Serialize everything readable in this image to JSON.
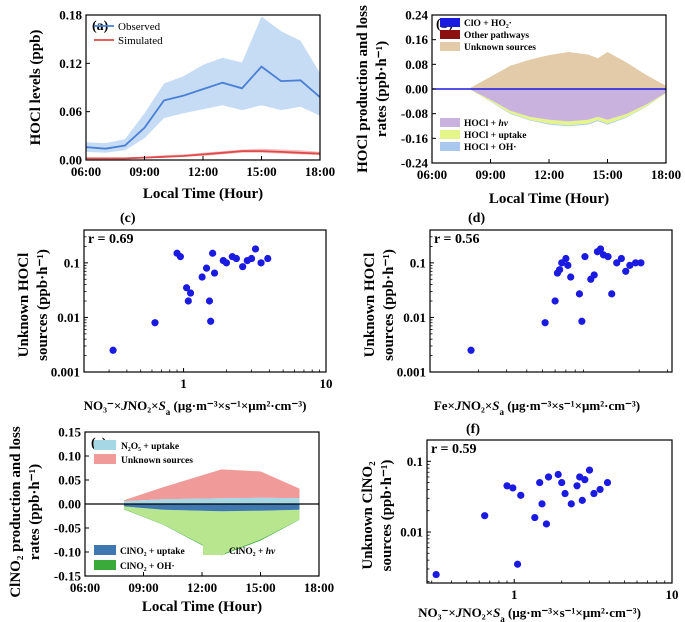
{
  "chart_data": [
    {
      "panel": "(a)",
      "type": "line",
      "ylabel": "HOCl levels (ppb)",
      "xlabel": "Local Time (Hour)",
      "xlim": [
        6,
        18
      ],
      "ylim": [
        0,
        0.18
      ],
      "yticks": [
        "0.00",
        "0.06",
        "0.12",
        "0.18"
      ],
      "xticks": [
        "06:00",
        "09:00",
        "12:00",
        "15:00",
        "18:00"
      ],
      "legend": [
        "Observed",
        "Simulated"
      ],
      "x": [
        6,
        7,
        8,
        9,
        10,
        11,
        12,
        13,
        14,
        15,
        16,
        17,
        18
      ],
      "series": [
        {
          "name": "Observed",
          "color": "#4a7fd6",
          "values": [
            0.016,
            0.014,
            0.018,
            0.04,
            0.074,
            0.08,
            0.088,
            0.096,
            0.089,
            0.116,
            0.098,
            0.099,
            0.078
          ],
          "lower": [
            0.01,
            0.009,
            0.012,
            0.027,
            0.052,
            0.058,
            0.063,
            0.068,
            0.062,
            0.068,
            0.062,
            0.066,
            0.055
          ],
          "upper": [
            0.022,
            0.021,
            0.026,
            0.058,
            0.095,
            0.104,
            0.118,
            0.127,
            0.121,
            0.178,
            0.16,
            0.148,
            0.108
          ]
        },
        {
          "name": "Simulated",
          "color": "#e04a4a",
          "values": [
            0.002,
            0.002,
            0.002,
            0.003,
            0.004,
            0.005,
            0.007,
            0.009,
            0.011,
            0.011,
            0.01,
            0.009,
            0.008
          ],
          "lower": [
            0.001,
            0.001,
            0.001,
            0.002,
            0.003,
            0.004,
            0.005,
            0.007,
            0.009,
            0.009,
            0.008,
            0.007,
            0.006
          ],
          "upper": [
            0.003,
            0.003,
            0.003,
            0.004,
            0.006,
            0.007,
            0.009,
            0.011,
            0.013,
            0.014,
            0.013,
            0.012,
            0.01
          ]
        }
      ]
    },
    {
      "panel": "(b)",
      "type": "area",
      "ylabel_line1": "HOCl production and loss",
      "ylabel_line2": "rates (ppb·h⁻¹)",
      "xlabel": "Local Time (Hour)",
      "xlim": [
        6,
        18
      ],
      "ylim": [
        -0.24,
        0.24
      ],
      "yticks": [
        "0.24",
        "0.16",
        "0.08",
        "0.00",
        "-0.08",
        "-0.16",
        "-0.24"
      ],
      "xticks": [
        "06:00",
        "09:00",
        "12:00",
        "15:00",
        "18:00"
      ],
      "legend_top": [
        {
          "label": "ClO + HO₂·",
          "color": "#1a1ae0"
        },
        {
          "label": "Other pathways",
          "color": "#8b1010"
        },
        {
          "label": "Unknown sources",
          "color": "#e3caa8"
        }
      ],
      "legend_bottom": [
        {
          "label": "HOCl + hv",
          "color": "#c9b2dd"
        },
        {
          "label": "HOCl + uptake",
          "color": "#e4f58a"
        },
        {
          "label": "HOCl + OH·",
          "color": "#a8c8ee"
        }
      ],
      "x": [
        8,
        9,
        10,
        11,
        12,
        13,
        14,
        14.5,
        15,
        16,
        17,
        18
      ],
      "series": [
        {
          "name": "Unknown sources",
          "values": [
            0.005,
            0.04,
            0.075,
            0.095,
            0.11,
            0.12,
            0.112,
            0.1,
            0.12,
            0.085,
            0.045,
            0.01
          ]
        },
        {
          "name": "HOCl + hv",
          "values": [
            -0.003,
            -0.035,
            -0.07,
            -0.09,
            -0.1,
            -0.105,
            -0.1,
            -0.09,
            -0.1,
            -0.08,
            -0.05,
            -0.012
          ]
        },
        {
          "name": "HOCl + uptake",
          "values": [
            -0.001,
            -0.005,
            -0.008,
            -0.01,
            -0.012,
            -0.013,
            -0.012,
            -0.011,
            -0.013,
            -0.01,
            -0.006,
            -0.002
          ]
        },
        {
          "name": "HOCl + OH·",
          "values": [
            0,
            -0.001,
            -0.002,
            -0.002,
            -0.003,
            -0.003,
            -0.003,
            -0.003,
            -0.003,
            -0.002,
            -0.001,
            0
          ]
        }
      ]
    },
    {
      "panel": "(c)",
      "type": "scatter",
      "log_x": true,
      "log_y": true,
      "annotation": "r = 0.69",
      "ylabel_line1": "Unknown HOCl",
      "ylabel_line2": "sources (ppb·h⁻¹)",
      "xlabel": "NO₃⁻×JNO₂×Sa (μg·m⁻³×s⁻¹×μm²·cm⁻³)",
      "xlim": [
        0.2,
        10
      ],
      "ylim": [
        0.001,
        0.4
      ],
      "xticks": [
        "1",
        "10"
      ],
      "yticks": [
        "0.1",
        "0.01",
        "0.001"
      ],
      "color": "#1a1ae0",
      "x": [
        0.32,
        0.63,
        0.9,
        0.95,
        1.05,
        1.08,
        1.12,
        1.35,
        1.45,
        1.52,
        1.55,
        1.6,
        1.65,
        1.9,
        2.0,
        2.2,
        2.35,
        2.6,
        2.8,
        3.0,
        3.2,
        3.5,
        3.9
      ],
      "y": [
        0.0025,
        0.008,
        0.15,
        0.13,
        0.035,
        0.02,
        0.028,
        0.055,
        0.08,
        0.02,
        0.0085,
        0.15,
        0.065,
        0.11,
        0.1,
        0.13,
        0.12,
        0.085,
        0.11,
        0.12,
        0.18,
        0.1,
        0.12
      ]
    },
    {
      "panel": "(d)",
      "type": "scatter",
      "log_x": false,
      "log_y": true,
      "annotation": "r = 0.56",
      "ylabel_line1": "Unknown HOCl",
      "ylabel_line2": "sources (ppb·h⁻¹)",
      "xlabel": "Fe×JNO₂×Sa (μg·m⁻³×s⁻¹×μm²·cm⁻³)",
      "ylim": [
        0.001,
        0.4
      ],
      "yticks": [
        "0.1",
        "0.01",
        "0.001"
      ],
      "color": "#1a1ae0",
      "x": [
        0.18,
        0.52,
        0.6,
        0.62,
        0.64,
        0.66,
        0.7,
        0.72,
        0.75,
        0.85,
        0.88,
        0.92,
        1.0,
        1.05,
        1.1,
        1.15,
        1.2,
        1.28,
        1.35,
        1.45,
        1.55,
        1.65,
        1.75,
        1.9,
        2.05
      ],
      "y": [
        0.0025,
        0.008,
        0.02,
        0.065,
        0.075,
        0.1,
        0.12,
        0.09,
        0.055,
        0.027,
        0.0085,
        0.13,
        0.05,
        0.06,
        0.16,
        0.18,
        0.14,
        0.13,
        0.027,
        0.1,
        0.12,
        0.07,
        0.09,
        0.1,
        0.1
      ]
    },
    {
      "panel": "(e)",
      "type": "area",
      "ylabel_line1": "ClNO₂ production and loss",
      "ylabel_line2": "rates (ppb·h⁻¹)",
      "xlabel": "Local Time (Hour)",
      "xlim": [
        6,
        18
      ],
      "ylim": [
        -0.15,
        0.15
      ],
      "yticks": [
        "0.15",
        "0.10",
        "0.05",
        "0.00",
        "-0.05",
        "-0.10",
        "-0.15"
      ],
      "xticks": [
        "06:00",
        "09:00",
        "12:00",
        "15:00",
        "18:00"
      ],
      "legend_top": [
        {
          "label": "N₂O₅ + uptake",
          "color": "#a6d7e4"
        },
        {
          "label": "Unknown sources",
          "color": "#f09a9a"
        }
      ],
      "legend_bottom": [
        {
          "label": "ClNO₂ + uptake",
          "color": "#3f78b0"
        },
        {
          "label": "ClNO₂ + hv",
          "color": "#b8e68f"
        },
        {
          "label": "ClNO₂ + OH·",
          "color": "#3aab3a"
        }
      ],
      "x": [
        8,
        10,
        13,
        15,
        17
      ],
      "series": [
        {
          "name": "N₂O₅ + uptake",
          "values": [
            0.006,
            0.01,
            0.012,
            0.013,
            0.012
          ]
        },
        {
          "name": "Unknown sources",
          "values": [
            0.002,
            0.025,
            0.06,
            0.055,
            0.02
          ]
        },
        {
          "name": "ClNO₂ + uptake",
          "values": [
            -0.005,
            -0.012,
            -0.015,
            -0.014,
            -0.012
          ]
        },
        {
          "name": "ClNO₂ + hv",
          "values": [
            -0.005,
            -0.03,
            -0.09,
            -0.06,
            -0.02
          ]
        },
        {
          "name": "ClNO₂ + OH·",
          "values": [
            -0.001,
            -0.001,
            -0.002,
            -0.002,
            -0.001
          ]
        }
      ]
    },
    {
      "panel": "(f)",
      "type": "scatter",
      "log_x": true,
      "log_y": true,
      "annotation": "r = 0.59",
      "ylabel_line1": "Unknown ClNO₂",
      "ylabel_line2": "sources (ppb·h⁻¹)",
      "xlabel": "NO₃⁻×JNO₂×Sa (μg·m⁻³×s⁻¹×μm²·cm⁻³)",
      "xlim": [
        0.28,
        10
      ],
      "ylim": [
        0.0019,
        0.2
      ],
      "xticks": [
        "1",
        "10"
      ],
      "yticks": [
        "0.1",
        "0.01"
      ],
      "color": "#1a1ae0",
      "x": [
        0.32,
        0.65,
        0.9,
        0.98,
        1.05,
        1.1,
        1.35,
        1.45,
        1.5,
        1.6,
        1.65,
        1.9,
        2.0,
        2.1,
        2.3,
        2.5,
        2.6,
        2.7,
        2.8,
        3.0,
        3.2,
        3.5,
        3.9
      ],
      "y": [
        0.0025,
        0.017,
        0.045,
        0.042,
        0.0035,
        0.033,
        0.016,
        0.05,
        0.025,
        0.013,
        0.06,
        0.065,
        0.05,
        0.035,
        0.025,
        0.045,
        0.06,
        0.028,
        0.055,
        0.075,
        0.035,
        0.04,
        0.05
      ]
    }
  ]
}
